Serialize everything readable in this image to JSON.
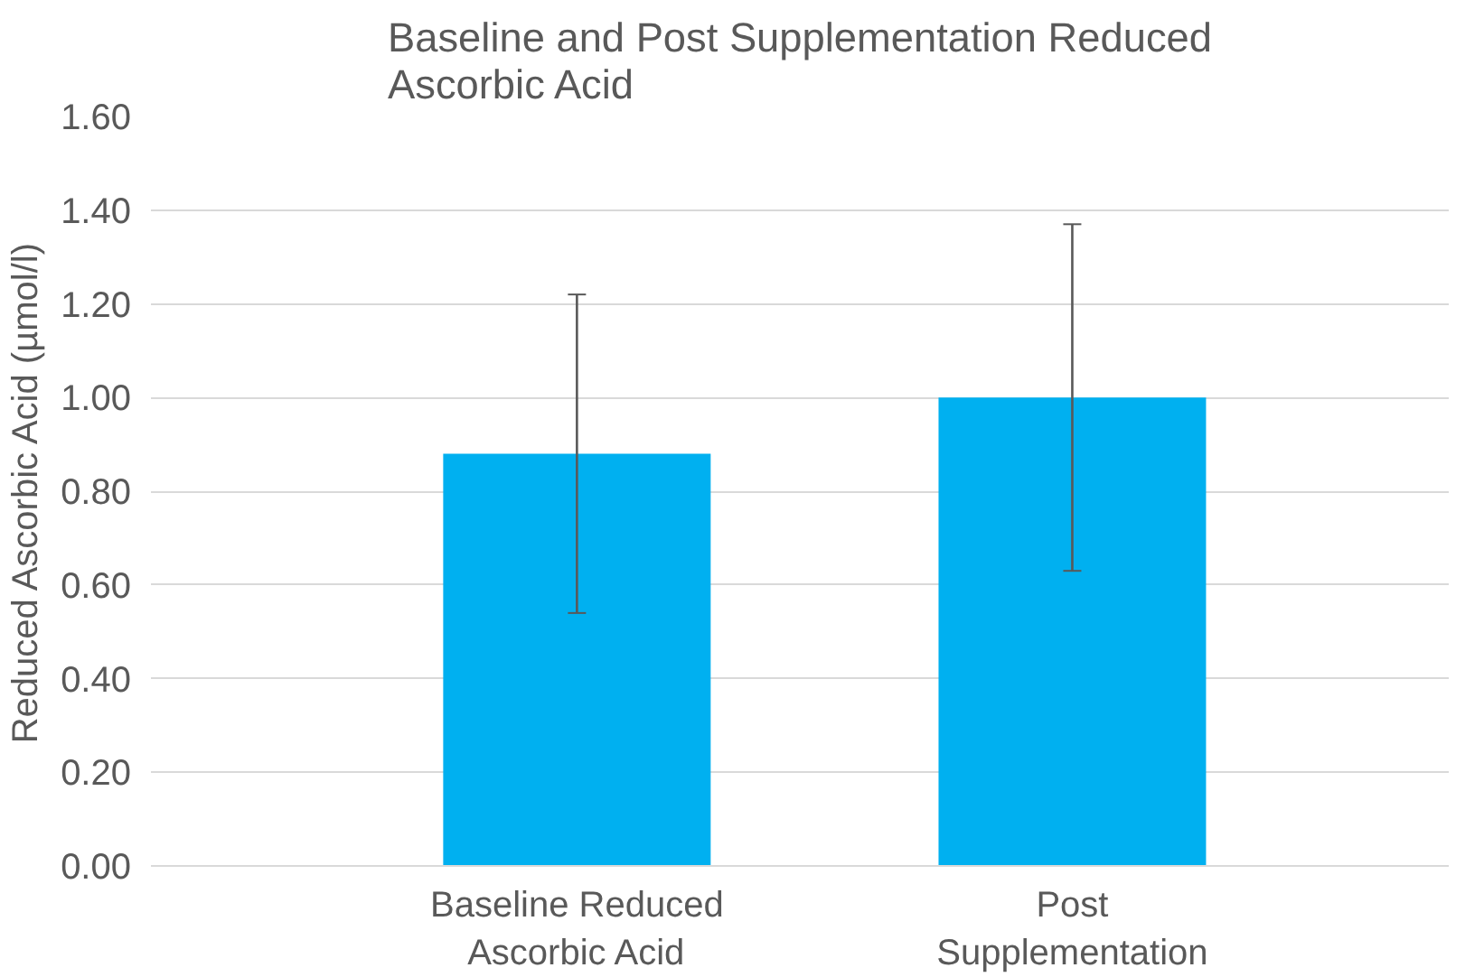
{
  "chart_data": {
    "type": "bar",
    "title": "Baseline and Post Supplementation Reduced Ascorbic Acid",
    "ylabel": "Reduced Ascorbic Acid (µmol/l)",
    "categories": [
      "Baseline Reduced Ascorbic Acid",
      "Post Supplementation"
    ],
    "values": [
      0.88,
      1.0
    ],
    "color": "#00b0f0",
    "errors": [
      [
        0.54,
        1.22
      ],
      [
        0.63,
        1.37
      ]
    ],
    "ylim": [
      0,
      1.6
    ],
    "yticks": [
      {
        "value": 0,
        "label": "0.00"
      },
      {
        "value": 0.2,
        "label": "0.20"
      },
      {
        "value": 0.4,
        "label": "0.40"
      },
      {
        "value": 0.6,
        "label": "0.60"
      },
      {
        "value": 0.8,
        "label": "0.80"
      },
      {
        "value": 1.0,
        "label": "1.00"
      },
      {
        "value": 1.2,
        "label": "1.20"
      },
      {
        "value": 1.4,
        "label": "1.40"
      },
      {
        "value": 1.6,
        "label": "1.60"
      }
    ],
    "grid": "y"
  }
}
